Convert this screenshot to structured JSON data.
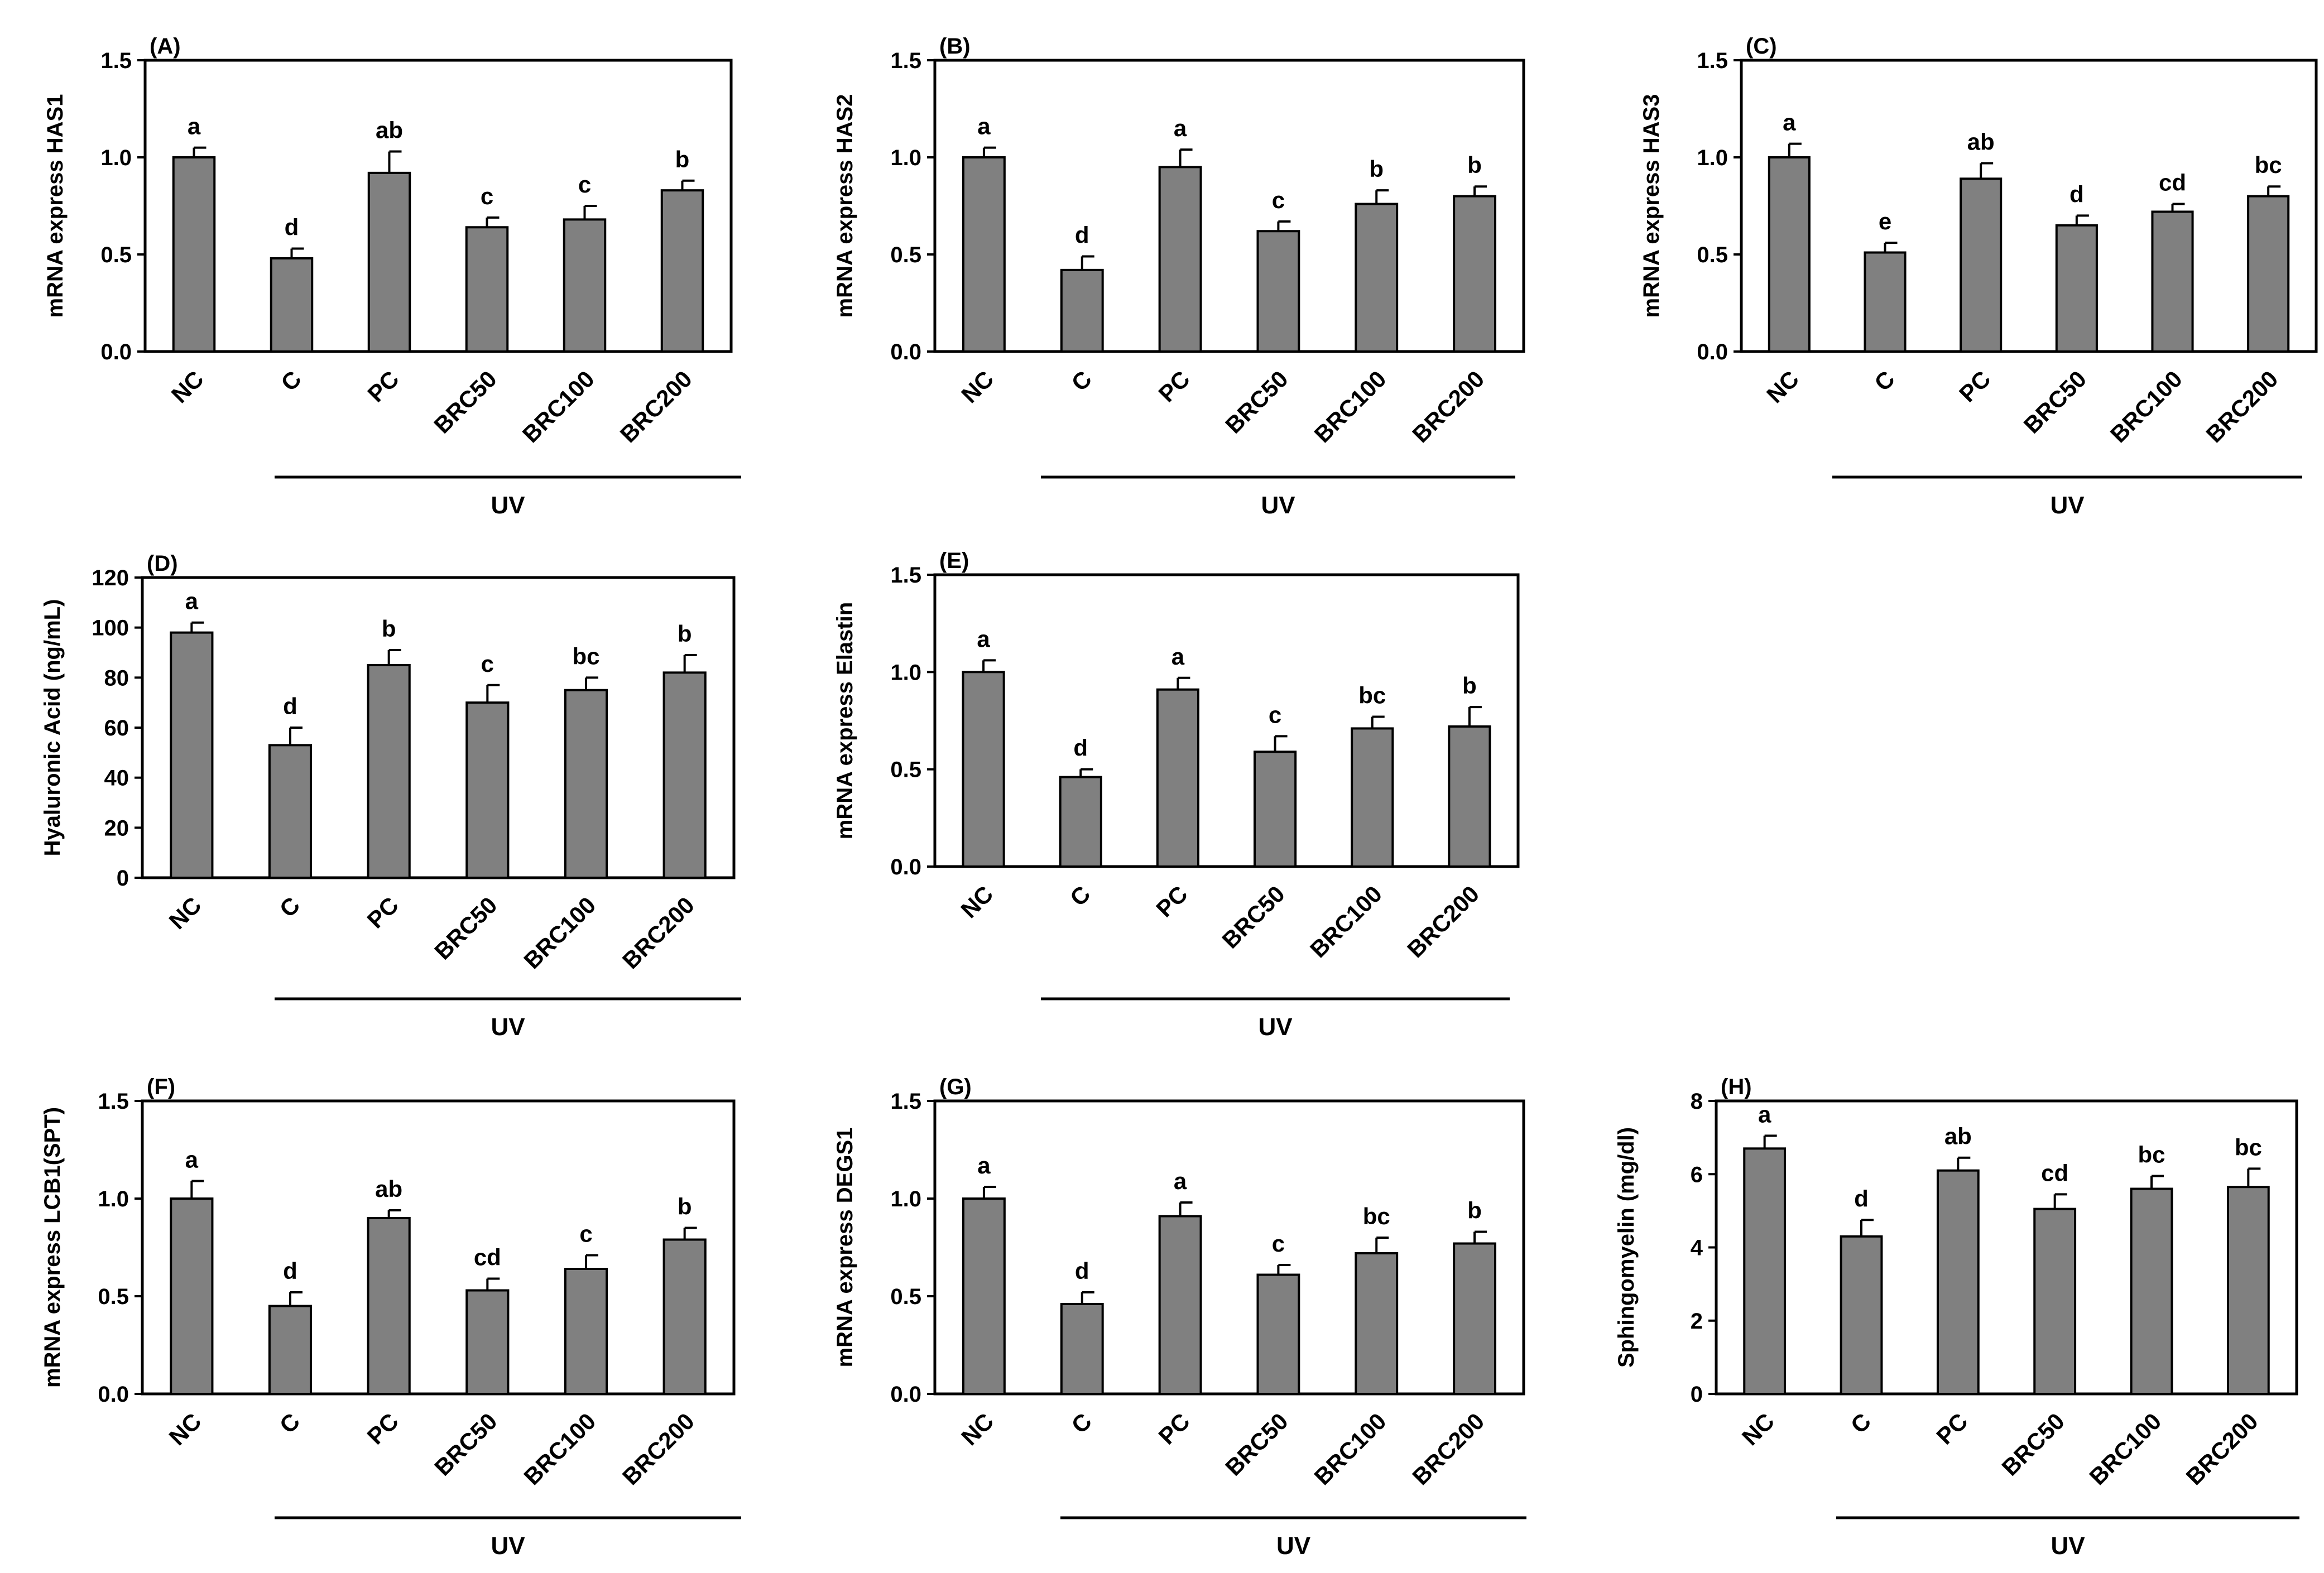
{
  "chart_data": [
    {
      "type": "bar",
      "panel_label": "(A)",
      "ylabel": "mRNA express HAS1",
      "ylim": [
        0,
        1.5
      ],
      "yticks": [
        "0.0",
        "0.5",
        "1.0",
        "1.5"
      ],
      "categories": [
        "NC",
        "C",
        "PC",
        "BRC50",
        "BRC100",
        "BRC200"
      ],
      "values": [
        1.0,
        0.48,
        0.92,
        0.64,
        0.68,
        0.83
      ],
      "errors": [
        0.05,
        0.05,
        0.11,
        0.05,
        0.07,
        0.05
      ],
      "significance": [
        "a",
        "d",
        "ab",
        "c",
        "c",
        "b"
      ],
      "group_label": "UV",
      "color": "#808080"
    },
    {
      "type": "bar",
      "panel_label": "(B)",
      "ylabel": "mRNA express HAS2",
      "ylim": [
        0,
        1.5
      ],
      "yticks": [
        "0.0",
        "0.5",
        "1.0",
        "1.5"
      ],
      "categories": [
        "NC",
        "C",
        "PC",
        "BRC50",
        "BRC100",
        "BRC200"
      ],
      "values": [
        1.0,
        0.42,
        0.95,
        0.62,
        0.76,
        0.8
      ],
      "errors": [
        0.05,
        0.07,
        0.09,
        0.05,
        0.07,
        0.05
      ],
      "significance": [
        "a",
        "d",
        "a",
        "c",
        "b",
        "b"
      ],
      "group_label": "UV",
      "color": "#808080"
    },
    {
      "type": "bar",
      "panel_label": "(C)",
      "ylabel": "mRNA express HAS3",
      "ylim": [
        0,
        1.5
      ],
      "yticks": [
        "0.0",
        "0.5",
        "1.0",
        "1.5"
      ],
      "categories": [
        "NC",
        "C",
        "PC",
        "BRC50",
        "BRC100",
        "BRC200"
      ],
      "values": [
        1.0,
        0.51,
        0.89,
        0.65,
        0.72,
        0.8
      ],
      "errors": [
        0.07,
        0.05,
        0.08,
        0.05,
        0.04,
        0.05
      ],
      "significance": [
        "a",
        "e",
        "ab",
        "d",
        "cd",
        "bc"
      ],
      "group_label": "UV",
      "color": "#808080"
    },
    {
      "type": "bar",
      "panel_label": "(D)",
      "ylabel": "Hyaluronic Acid (ng/mL)",
      "ylim": [
        0,
        120
      ],
      "yticks": [
        "0",
        "20",
        "40",
        "60",
        "80",
        "100",
        "120"
      ],
      "categories": [
        "NC",
        "C",
        "PC",
        "BRC50",
        "BRC100",
        "BRC200"
      ],
      "values": [
        98,
        53,
        85,
        70,
        75,
        82
      ],
      "errors": [
        4,
        7,
        6,
        7,
        5,
        7
      ],
      "significance": [
        "a",
        "d",
        "b",
        "c",
        "bc",
        "b"
      ],
      "group_label": "UV",
      "color": "#808080"
    },
    {
      "type": "bar",
      "panel_label": "(E)",
      "ylabel": "mRNA express Elastin",
      "ylim": [
        0,
        1.5
      ],
      "yticks": [
        "0.0",
        "0.5",
        "1.0",
        "1.5"
      ],
      "categories": [
        "NC",
        "C",
        "PC",
        "BRC50",
        "BRC100",
        "BRC200"
      ],
      "values": [
        1.0,
        0.46,
        0.91,
        0.59,
        0.71,
        0.72
      ],
      "errors": [
        0.06,
        0.04,
        0.06,
        0.08,
        0.06,
        0.1
      ],
      "significance": [
        "a",
        "d",
        "a",
        "c",
        "bc",
        "b"
      ],
      "group_label": "UV",
      "color": "#808080"
    },
    {
      "type": "bar",
      "panel_label": "(F)",
      "ylabel": "mRNA express LCB1(SPT)",
      "ylim": [
        0,
        1.5
      ],
      "yticks": [
        "0.0",
        "0.5",
        "1.0",
        "1.5"
      ],
      "categories": [
        "NC",
        "C",
        "PC",
        "BRC50",
        "BRC100",
        "BRC200"
      ],
      "values": [
        1.0,
        0.45,
        0.9,
        0.53,
        0.64,
        0.79
      ],
      "errors": [
        0.09,
        0.07,
        0.04,
        0.06,
        0.07,
        0.06
      ],
      "significance": [
        "a",
        "d",
        "ab",
        "cd",
        "c",
        "b"
      ],
      "group_label": "UV",
      "color": "#808080"
    },
    {
      "type": "bar",
      "panel_label": "(G)",
      "ylabel": "mRNA express DEGS1",
      "ylim": [
        0,
        1.5
      ],
      "yticks": [
        "0.0",
        "0.5",
        "1.0",
        "1.5"
      ],
      "categories": [
        "NC",
        "C",
        "PC",
        "BRC50",
        "BRC100",
        "BRC200"
      ],
      "values": [
        1.0,
        0.46,
        0.91,
        0.61,
        0.72,
        0.77
      ],
      "errors": [
        0.06,
        0.06,
        0.07,
        0.05,
        0.08,
        0.06
      ],
      "significance": [
        "a",
        "d",
        "a",
        "c",
        "bc",
        "b"
      ],
      "group_label": "UV",
      "color": "#808080"
    },
    {
      "type": "bar",
      "panel_label": "(H)",
      "ylabel": "Sphingomyelin (mg/dl)",
      "ylim": [
        0,
        8
      ],
      "yticks": [
        "0",
        "2",
        "4",
        "6",
        "8"
      ],
      "categories": [
        "NC",
        "C",
        "PC",
        "BRC50",
        "BRC100",
        "BRC200"
      ],
      "values": [
        6.7,
        4.3,
        6.1,
        5.05,
        5.6,
        5.65
      ],
      "errors": [
        0.35,
        0.45,
        0.35,
        0.4,
        0.35,
        0.5
      ],
      "significance": [
        "a",
        "d",
        "ab",
        "cd",
        "bc",
        "bc"
      ],
      "group_label": "UV",
      "color": "#808080"
    }
  ]
}
